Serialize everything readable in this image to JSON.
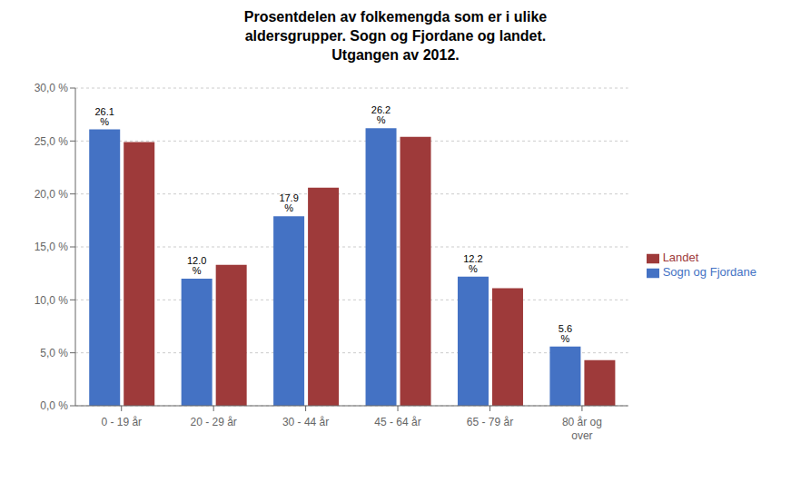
{
  "chart_data": {
    "type": "bar",
    "title": "Prosentdelen av folkemengda som er i ulike\naldersgrupper. Sogn og Fjordane og landet.\nUtgangen av 2012.",
    "categories": [
      "0 - 19 år",
      "20 - 29 år",
      "30 - 44 år",
      "45 - 64 år",
      "65 - 79 år",
      "80 år og\nover"
    ],
    "series": [
      {
        "name": "Sogn og Fjordane",
        "color": "#4472C4",
        "values": [
          26.1,
          12.0,
          17.9,
          26.2,
          12.2,
          5.6
        ],
        "value_labels": [
          "26.1 %",
          "12.0 %",
          "17.9 %",
          "26.2 %",
          "12.2 %",
          "5.6 %"
        ]
      },
      {
        "name": "Landet",
        "color": "#9E3A3A",
        "values": [
          24.9,
          13.3,
          20.6,
          25.4,
          11.1,
          4.3
        ]
      }
    ],
    "ylim": [
      0,
      30
    ],
    "yticks": [
      {
        "value": 0,
        "label": "0,0 %"
      },
      {
        "value": 5,
        "label": "5,0 %"
      },
      {
        "value": 10,
        "label": "10,0 %"
      },
      {
        "value": 15,
        "label": "15,0 %"
      },
      {
        "value": 20,
        "label": "20,0 %"
      },
      {
        "value": 25,
        "label": "25,0 %"
      },
      {
        "value": 30,
        "label": "30,0 %"
      }
    ],
    "grid": true,
    "legend": "right"
  }
}
